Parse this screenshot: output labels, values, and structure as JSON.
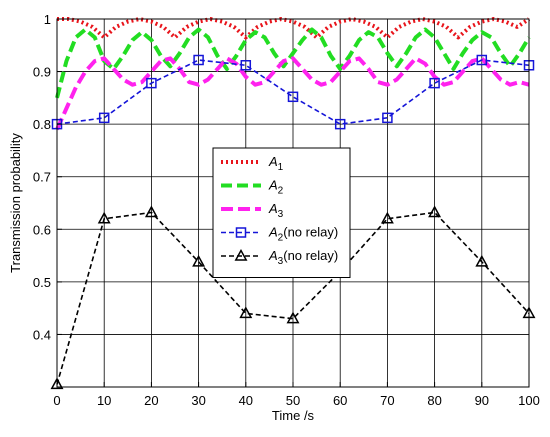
{
  "chart_data": {
    "type": "line",
    "xlabel": "Time /s",
    "ylabel": "Transmission probability",
    "xlim": [
      0,
      100
    ],
    "ylim": [
      0.3,
      1.0
    ],
    "xticks": [
      "0",
      "10",
      "20",
      "30",
      "40",
      "50",
      "60",
      "70",
      "80",
      "90",
      "100"
    ],
    "yticks": [
      "0.4",
      "0.5",
      "0.6",
      "0.7",
      "0.8",
      "0.9",
      "1"
    ],
    "grid": true,
    "legend_position": "center",
    "series": [
      {
        "name": "A1",
        "legend_main": "A",
        "legend_sub": "1",
        "legend_suffix": "",
        "style": "dotted",
        "color": "#e8141b",
        "marker": "none",
        "x": [
          0,
          2.5,
          5,
          7.5,
          10,
          12.5,
          15,
          17.5,
          20,
          22.5,
          25,
          27.5,
          30,
          32.5,
          35,
          37.5,
          40,
          42.5,
          45,
          47.5,
          50,
          52.5,
          55,
          57.5,
          60,
          62.5,
          65,
          67.5,
          70,
          72.5,
          75,
          77.5,
          80,
          82.5,
          85,
          87.5,
          90,
          92.5,
          95,
          97.5,
          100
        ],
        "y": [
          1.0,
          1.0,
          0.995,
          0.985,
          0.965,
          0.985,
          0.995,
          1.0,
          0.995,
          0.985,
          0.965,
          0.985,
          0.995,
          1.0,
          0.995,
          0.985,
          0.965,
          0.985,
          0.995,
          1.0,
          0.995,
          0.985,
          0.965,
          0.985,
          0.995,
          1.0,
          0.995,
          0.985,
          0.965,
          0.985,
          0.995,
          1.0,
          0.995,
          0.985,
          0.965,
          0.985,
          0.995,
          1.0,
          0.995,
          0.985,
          1.0
        ]
      },
      {
        "name": "A2",
        "legend_main": "A",
        "legend_sub": "2",
        "legend_suffix": "",
        "style": "dashed",
        "color": "#22dd22",
        "marker": "none",
        "x": [
          0,
          2,
          4,
          6,
          8,
          10,
          12,
          14,
          16,
          18,
          20,
          22,
          24,
          26,
          28,
          30,
          32,
          34,
          36,
          38,
          40,
          42,
          44,
          46,
          48,
          50,
          52,
          54,
          56,
          58,
          60,
          62,
          64,
          66,
          68,
          70,
          72,
          74,
          76,
          78,
          80,
          82,
          84,
          86,
          88,
          90,
          92,
          94,
          96,
          98,
          100
        ],
        "y": [
          0.85,
          0.92,
          0.965,
          0.98,
          0.965,
          0.92,
          0.905,
          0.93,
          0.96,
          0.975,
          0.96,
          0.93,
          0.91,
          0.935,
          0.965,
          0.98,
          0.965,
          0.93,
          0.905,
          0.93,
          0.96,
          0.975,
          0.965,
          0.935,
          0.91,
          0.935,
          0.96,
          0.98,
          0.965,
          0.93,
          0.905,
          0.93,
          0.96,
          0.975,
          0.965,
          0.935,
          0.91,
          0.935,
          0.965,
          0.98,
          0.965,
          0.935,
          0.905,
          0.935,
          0.96,
          0.975,
          0.965,
          0.935,
          0.91,
          0.935,
          0.965
        ]
      },
      {
        "name": "A3",
        "legend_main": "A",
        "legend_sub": "3",
        "legend_suffix": "",
        "style": "longdash",
        "color": "#ff22ee",
        "marker": "none",
        "x": [
          0,
          2,
          4,
          6,
          8,
          10,
          12,
          14,
          16,
          18,
          20,
          22,
          24,
          26,
          28,
          30,
          32,
          34,
          36,
          38,
          40,
          42,
          44,
          46,
          48,
          50,
          52,
          54,
          56,
          58,
          60,
          62,
          64,
          66,
          68,
          70,
          72,
          74,
          76,
          78,
          80,
          82,
          84,
          86,
          88,
          90,
          92,
          94,
          96,
          98,
          100
        ],
        "y": [
          0.79,
          0.83,
          0.87,
          0.9,
          0.92,
          0.925,
          0.905,
          0.885,
          0.875,
          0.88,
          0.9,
          0.92,
          0.925,
          0.905,
          0.88,
          0.875,
          0.885,
          0.905,
          0.925,
          0.915,
          0.89,
          0.875,
          0.88,
          0.9,
          0.92,
          0.925,
          0.905,
          0.885,
          0.875,
          0.88,
          0.9,
          0.92,
          0.925,
          0.905,
          0.88,
          0.875,
          0.885,
          0.905,
          0.925,
          0.915,
          0.89,
          0.875,
          0.88,
          0.9,
          0.92,
          0.925,
          0.905,
          0.885,
          0.875,
          0.88,
          0.875
        ]
      },
      {
        "name": "A2(no relay)",
        "legend_main": "A",
        "legend_sub": "2",
        "legend_suffix": "(no relay)",
        "style": "dash",
        "color": "#1515d8",
        "marker": "square",
        "x": [
          0,
          10,
          20,
          30,
          40,
          50,
          60,
          70,
          80,
          90,
          100
        ],
        "y": [
          0.8,
          0.812,
          0.878,
          0.922,
          0.912,
          0.852,
          0.8,
          0.812,
          0.878,
          0.922,
          0.912
        ]
      },
      {
        "name": "A3(no relay)",
        "legend_main": "A",
        "legend_sub": "3",
        "legend_suffix": "(no relay)",
        "style": "dash",
        "color": "#000000",
        "marker": "triangle",
        "x": [
          0,
          10,
          20,
          30,
          40,
          50,
          60,
          70,
          80,
          90,
          100
        ],
        "y": [
          0.305,
          0.62,
          0.632,
          0.538,
          0.44,
          0.43,
          0.52,
          0.62,
          0.632,
          0.538,
          0.44
        ]
      }
    ]
  }
}
